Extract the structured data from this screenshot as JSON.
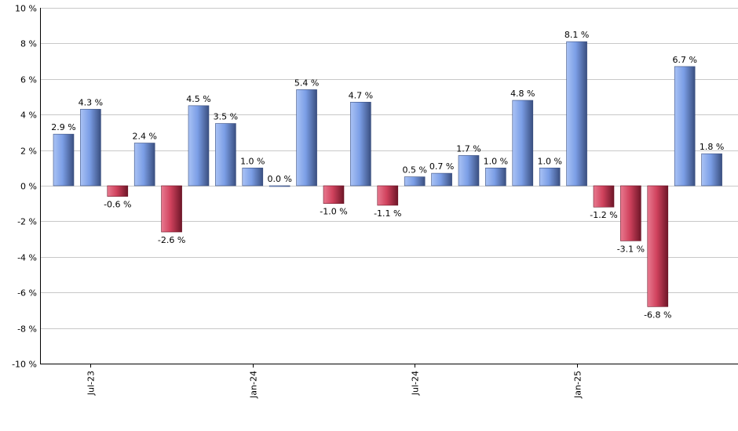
{
  "chart_data": {
    "type": "bar",
    "title": "",
    "xlabel": "",
    "ylabel": "",
    "ylim": [
      -10,
      10
    ],
    "y_ticks": [
      10,
      8,
      6,
      4,
      2,
      0,
      -2,
      -4,
      -6,
      -8,
      -10
    ],
    "y_tick_labels": [
      "10 %",
      "8 %",
      "6 %",
      "4 %",
      "2 %",
      "0 %",
      "-2 %",
      "-4 %",
      "-6 %",
      "-8 %",
      "-10 %"
    ],
    "grid": true,
    "legend": "none",
    "categories": [
      "2023-06",
      "2023-07",
      "2023-08",
      "2023-09",
      "2023-10",
      "2023-11",
      "2023-12",
      "2024-01",
      "2024-02",
      "2024-03",
      "2024-04",
      "2024-05",
      "2024-06",
      "2024-07",
      "2024-08",
      "2024-09",
      "2024-10",
      "2024-11",
      "2024-12",
      "2025-01",
      "2025-02",
      "2025-03",
      "2025-04",
      "2025-05",
      "2025-06"
    ],
    "values": [
      2.9,
      4.3,
      -0.6,
      2.4,
      -2.6,
      4.5,
      3.5,
      1.0,
      0.0,
      5.4,
      -1.0,
      4.7,
      -1.1,
      0.5,
      0.7,
      1.7,
      1.0,
      4.8,
      1.0,
      8.1,
      -1.2,
      -3.1,
      -6.8,
      6.7,
      1.8
    ],
    "value_labels": [
      "2.9 %",
      "4.3 %",
      "-0.6 %",
      "2.4 %",
      "-2.6 %",
      "4.5 %",
      "3.5 %",
      "1.0 %",
      "0.0 %",
      "5.4 %",
      "-1.0 %",
      "4.7 %",
      "-1.1 %",
      "0.5 %",
      "0.7 %",
      "1.7 %",
      "1.0 %",
      "4.8 %",
      "1.0 %",
      "8.1 %",
      "-1.2 %",
      "-3.1 %",
      "-6.8 %",
      "6.7 %",
      "1.8 %"
    ],
    "x_tick_labels": [
      {
        "category_index": 1,
        "label": "Jul-23"
      },
      {
        "category_index": 7,
        "label": "Jan-24"
      },
      {
        "category_index": 13,
        "label": "Jul-24"
      },
      {
        "category_index": 19,
        "label": "Jan-25"
      }
    ],
    "colors": {
      "positive": "#7b9ee6",
      "positive_edge": "#3a4f80",
      "negative": "#d0425d",
      "negative_edge": "#6e1628",
      "grid": "#c8c8c8",
      "axis": "#000000"
    }
  }
}
